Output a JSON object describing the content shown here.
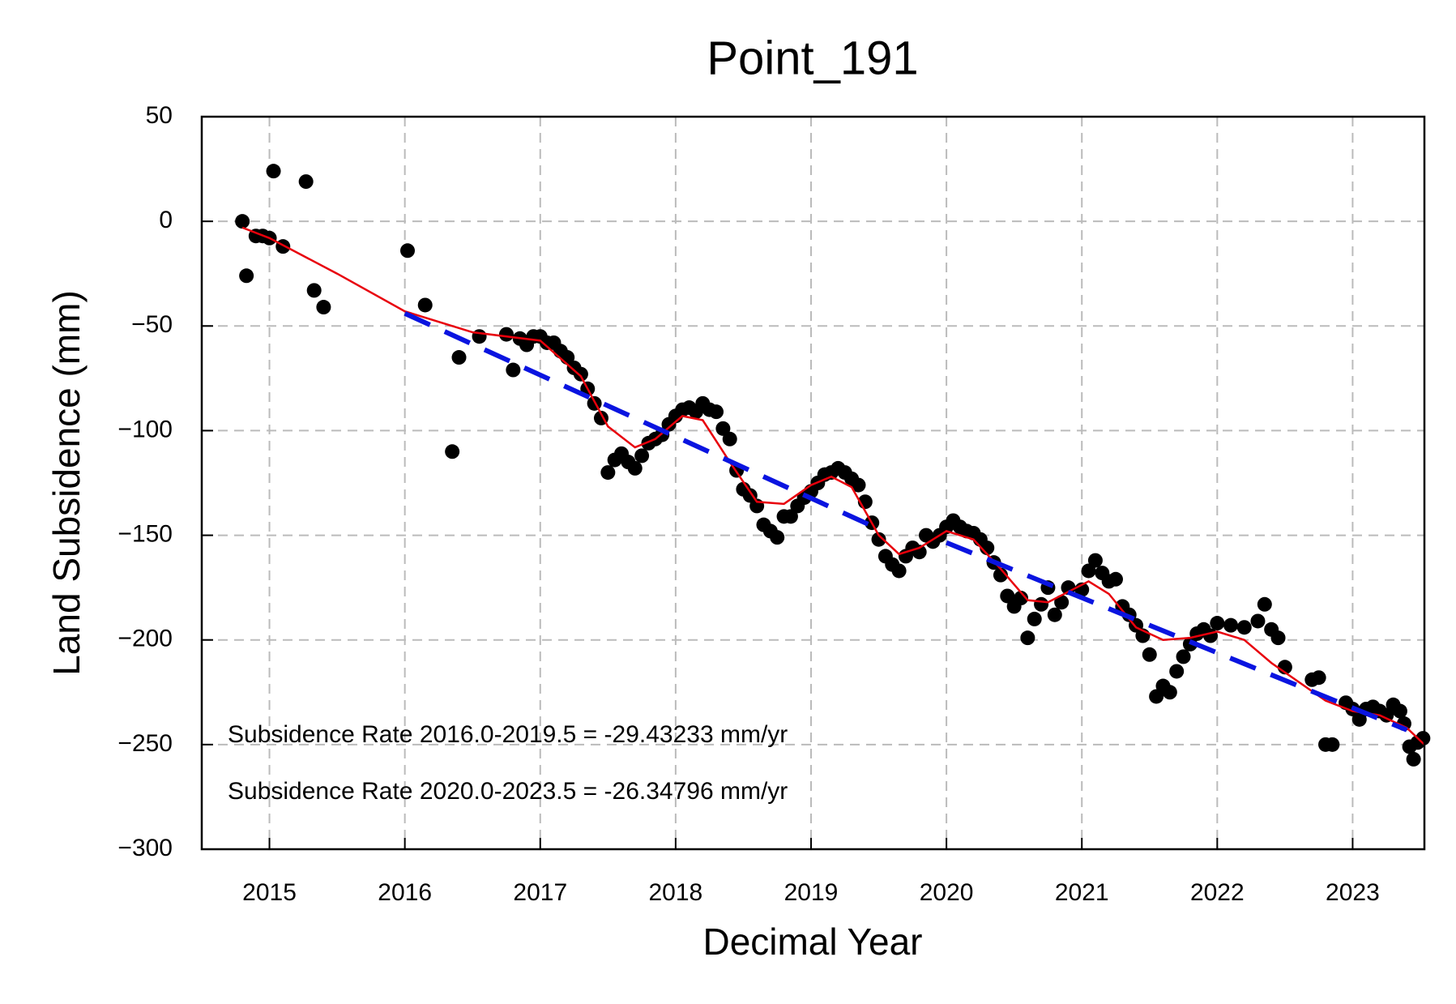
{
  "chart_data": {
    "type": "scatter",
    "title": "Point_191",
    "x_label": "Decimal Year",
    "y_label": "Land Subsidence (mm)",
    "annotations": [
      "Subsidence Rate 2016.0-2019.5 = -29.43233 mm/yr",
      "Subsidence Rate 2020.0-2023.5 = -26.34796 mm/yr"
    ],
    "xlim": [
      2014.5,
      2023.53
    ],
    "ylim": [
      -300,
      50
    ],
    "xticks": [
      2015,
      2016,
      2017,
      2018,
      2019,
      2020,
      2021,
      2022,
      2023
    ],
    "yticks": [
      {
        "value": -300,
        "label": "−300"
      },
      {
        "value": -250,
        "label": "−250"
      },
      {
        "value": -200,
        "label": "−200"
      },
      {
        "value": -150,
        "label": "−150"
      },
      {
        "value": -100,
        "label": "−100"
      },
      {
        "value": -50,
        "label": "−50"
      },
      0,
      50
    ],
    "grid": true,
    "series": [
      {
        "style": "points",
        "color": "#000000",
        "x": [
          2014.8,
          2014.83,
          2014.9,
          2014.95,
          2015.0,
          2015.03,
          2015.1,
          2015.27,
          2015.33,
          2015.4,
          2016.02,
          2016.15,
          2016.35,
          2016.4,
          2016.55,
          2016.75,
          2016.8,
          2016.85,
          2016.9,
          2016.95,
          2017.0,
          2017.05,
          2017.1,
          2017.15,
          2017.2,
          2017.25,
          2017.3,
          2017.35,
          2017.4,
          2017.45,
          2017.5,
          2017.55,
          2017.6,
          2017.65,
          2017.7,
          2017.75,
          2017.8,
          2017.85,
          2017.9,
          2017.95,
          2018.0,
          2018.05,
          2018.1,
          2018.15,
          2018.2,
          2018.25,
          2018.3,
          2018.35,
          2018.4,
          2018.45,
          2018.5,
          2018.55,
          2018.6,
          2018.65,
          2018.7,
          2018.75,
          2018.8,
          2018.85,
          2018.9,
          2018.95,
          2019.0,
          2019.05,
          2019.1,
          2019.15,
          2019.2,
          2019.25,
          2019.3,
          2019.35,
          2019.4,
          2019.45,
          2019.5,
          2019.55,
          2019.6,
          2019.65,
          2019.7,
          2019.75,
          2019.8,
          2019.85,
          2019.9,
          2019.95,
          2020.0,
          2020.05,
          2020.1,
          2020.15,
          2020.2,
          2020.25,
          2020.3,
          2020.35,
          2020.4,
          2020.45,
          2020.5,
          2020.55,
          2020.6,
          2020.65,
          2020.7,
          2020.75,
          2020.8,
          2020.85,
          2020.9,
          2021.0,
          2021.05,
          2021.1,
          2021.15,
          2021.2,
          2021.25,
          2021.3,
          2021.35,
          2021.4,
          2021.45,
          2021.5,
          2021.55,
          2021.6,
          2021.65,
          2021.7,
          2021.75,
          2021.8,
          2021.85,
          2021.9,
          2021.95,
          2022.0,
          2022.1,
          2022.2,
          2022.3,
          2022.35,
          2022.4,
          2022.45,
          2022.5,
          2022.7,
          2022.75,
          2022.8,
          2022.85,
          2022.95,
          2023.0,
          2023.05,
          2023.1,
          2023.15,
          2023.2,
          2023.25,
          2023.3,
          2023.35,
          2023.38,
          2023.42,
          2023.45,
          2023.48,
          2023.52
        ],
        "y": [
          0,
          -26,
          -7,
          -7,
          -8,
          24,
          -12,
          19,
          -33,
          -41,
          -14,
          -40,
          -110,
          -65,
          -55,
          -54,
          -71,
          -56,
          -59,
          -55,
          -55,
          -58,
          -58,
          -62,
          -65,
          -70,
          -73,
          -80,
          -87,
          -94,
          -120,
          -114,
          -111,
          -115,
          -118,
          -112,
          -106,
          -104,
          -102,
          -97,
          -93,
          -90,
          -89,
          -91,
          -87,
          -90,
          -91,
          -99,
          -104,
          -119,
          -128,
          -131,
          -136,
          -145,
          -148,
          -151,
          -141,
          -141,
          -136,
          -132,
          -129,
          -125,
          -121,
          -120,
          -118,
          -120,
          -123,
          -126,
          -134,
          -144,
          -152,
          -160,
          -164,
          -167,
          -160,
          -156,
          -158,
          -150,
          -153,
          -150,
          -146,
          -143,
          -146,
          -148,
          -149,
          -152,
          -156,
          -163,
          -169,
          -179,
          -184,
          -180,
          -199,
          -190,
          -183,
          -175,
          -188,
          -182,
          -175,
          -176,
          -167,
          -162,
          -168,
          -172,
          -171,
          -184,
          -188,
          -193,
          -198,
          -207,
          -227,
          -222,
          -225,
          -215,
          -208,
          -202,
          -197,
          -195,
          -198,
          -192,
          -193,
          -194,
          -191,
          -183,
          -195,
          -199,
          -213,
          -219,
          -218,
          -250,
          -250,
          -230,
          -233,
          -238,
          -233,
          -232,
          -234,
          -236,
          -231,
          -234,
          -240,
          -251,
          -257,
          -249,
          -247
        ]
      },
      {
        "style": "line",
        "color": "#e8000b",
        "x": [
          2014.8,
          2015,
          2015.5,
          2016,
          2016.5,
          2017,
          2017.3,
          2017.5,
          2017.7,
          2017.85,
          2018.05,
          2018.2,
          2018.4,
          2018.6,
          2018.8,
          2019.0,
          2019.15,
          2019.3,
          2019.5,
          2019.65,
          2019.8,
          2020.0,
          2020.2,
          2020.4,
          2020.6,
          2020.75,
          2020.9,
          2021.05,
          2021.2,
          2021.4,
          2021.6,
          2021.8,
          2022.0,
          2022.2,
          2022.4,
          2022.6,
          2022.8,
          2023.0,
          2023.2,
          2023.4,
          2023.53
        ],
        "y": [
          -3,
          -8,
          -25,
          -43,
          -53,
          -57,
          -74,
          -98,
          -108,
          -104,
          -93,
          -95,
          -115,
          -134,
          -135,
          -126,
          -122,
          -127,
          -150,
          -159,
          -156,
          -148,
          -152,
          -166,
          -181,
          -182,
          -177,
          -172,
          -178,
          -194,
          -200,
          -199,
          -196,
          -200,
          -211,
          -220,
          -229,
          -234,
          -236,
          -242,
          -250
        ]
      },
      {
        "style": "dashed",
        "color": "#0a14e0",
        "x": [
          2016,
          2019.5
        ],
        "y": [
          -44,
          -147
        ]
      },
      {
        "style": "dashed",
        "color": "#0a14e0",
        "x": [
          2020,
          2023.4
        ],
        "y": [
          -153.5,
          -243
        ]
      }
    ]
  }
}
